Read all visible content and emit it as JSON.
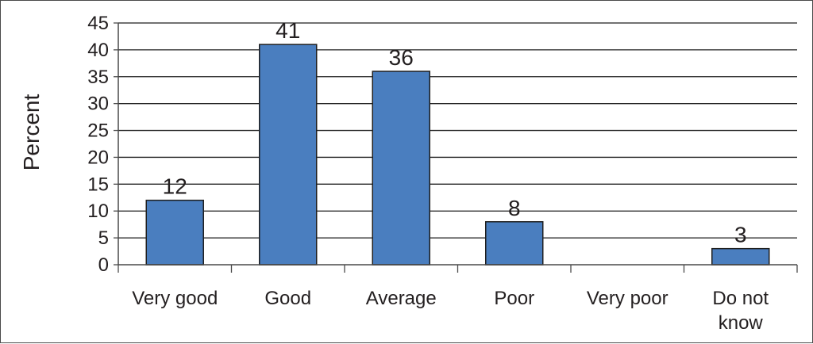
{
  "chart_data": {
    "type": "bar",
    "title": "",
    "xlabel": "",
    "ylabel": "Percent",
    "categories": [
      [
        "Very good"
      ],
      [
        "Good"
      ],
      [
        "Average"
      ],
      [
        "Poor"
      ],
      [
        "Very poor"
      ],
      [
        "Do not",
        "know"
      ]
    ],
    "values": [
      12,
      41,
      36,
      8,
      null,
      3
    ],
    "data_labels": [
      "12",
      "41",
      "36",
      "8",
      "",
      "3"
    ],
    "y_ticks": [
      0,
      5,
      10,
      15,
      20,
      25,
      30,
      35,
      40,
      45
    ],
    "ylim": [
      0,
      45
    ],
    "grid": true,
    "legend": "none",
    "colors": {
      "bar_fill": "#4a7ebf",
      "bar_stroke": "#1f1f1f",
      "grid": "#1f1f1f",
      "axis": "#4a4a4a",
      "text": "#231f20"
    }
  }
}
